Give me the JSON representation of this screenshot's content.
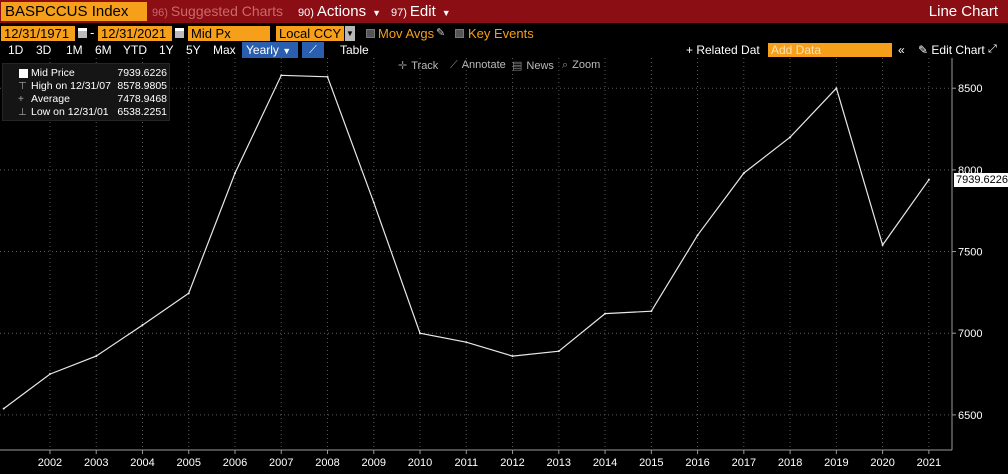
{
  "header": {
    "ticker": "BASPCCUS Index",
    "suggested_num": "96)",
    "suggested_label": "Suggested Charts",
    "actions_num": "90)",
    "actions_label": "Actions",
    "edit_num": "97)",
    "edit_label": "Edit",
    "chart_title": "Line Chart"
  },
  "toolbar": {
    "start_date": "12/31/1971",
    "end_date": "12/31/2021",
    "date_separator": "-",
    "field": "Mid Px",
    "currency": "Local CCY",
    "mov_avgs": "Mov Avgs",
    "key_events": "Key Events"
  },
  "periods": {
    "items": [
      "1D",
      "3D",
      "1M",
      "6M",
      "YTD",
      "1Y",
      "5Y",
      "Max"
    ],
    "selected": "Yearly",
    "table_label": "Table",
    "related_data": "+ Related Dat",
    "add_data_placeholder": "Add Data",
    "collapse_icon_text": "«",
    "edit_chart": "Edit Chart"
  },
  "tools": {
    "track": "Track",
    "annotate": "Annotate",
    "news": "News",
    "zoom": "Zoom"
  },
  "legend": {
    "series_name": "Mid Price",
    "series_value": "7939.6226",
    "high_label": "High on 12/31/07",
    "high_value": "8578.9805",
    "average_label": "Average",
    "average_value": "7478.9468",
    "low_label": "Low on 12/31/01",
    "low_value": "6538.2251"
  },
  "colors": {
    "topbar": "#8b0e14",
    "accent_orange": "#f59f1a",
    "selected_blue": "#2a5fb0",
    "line": "#ffffff",
    "background": "#000000"
  },
  "chart_data": {
    "type": "line",
    "title": "",
    "xlabel": "",
    "ylabel": "",
    "x": [
      2001,
      2002,
      2003,
      2004,
      2005,
      2006,
      2007,
      2008,
      2009,
      2010,
      2011,
      2012,
      2013,
      2014,
      2015,
      2016,
      2017,
      2018,
      2019,
      2020,
      2021
    ],
    "x_tick_labels": [
      "2002",
      "2003",
      "2004",
      "2005",
      "2006",
      "2007",
      "2008",
      "2009",
      "2010",
      "2011",
      "2012",
      "2013",
      "2014",
      "2015",
      "2016",
      "2017",
      "2018",
      "2019",
      "2020",
      "2021"
    ],
    "series": [
      {
        "values": [
          6538.2251,
          6750,
          6860,
          7050,
          7245,
          7980,
          8578.9805,
          8570,
          7800,
          7000,
          6945,
          6860,
          6890,
          7120,
          7135,
          7600,
          7980,
          8200,
          8500,
          7540,
          7939.6226
        ]
      }
    ],
    "y_ticks": [
      6500,
      7000,
      7500,
      8000,
      8500
    ],
    "ylim": [
      6285,
      8685
    ],
    "xlim": [
      2000.92,
      2021.5
    ],
    "last_value_label": "7939.6226",
    "grid": true,
    "y_axis_side": "right"
  }
}
